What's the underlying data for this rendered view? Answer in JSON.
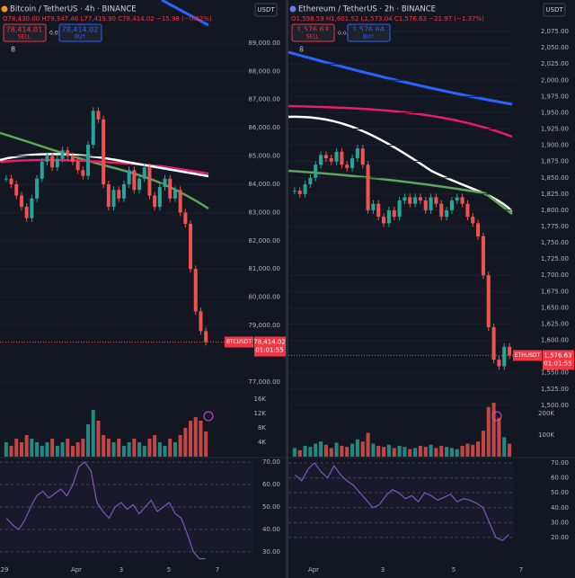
{
  "panels": [
    {
      "header": {
        "title": "Bitcoin / TetherUS · 4h · BINANCE",
        "ohlc": "O78,430.00 H79,347.46 L77,419.90 C78,414.02 −15.98 (−0.02%)",
        "sell_price": "78,414.01",
        "sell": "SELL",
        "spread": "0.01",
        "buy_price": "78,414.02",
        "buy": "BUY",
        "indicators": "8",
        "currency": "USDT"
      },
      "price_ylim": [
        76520,
        89570
      ],
      "price_ticks": [
        {
          "value": 89000,
          "label": "89,000.00"
        },
        {
          "value": 88000,
          "label": "88,000.00"
        },
        {
          "value": 87000,
          "label": "87,000.00"
        },
        {
          "value": 86000,
          "label": "86,000.00"
        },
        {
          "value": 85000,
          "label": "85,000.00"
        },
        {
          "value": 84000,
          "label": "84,000.00"
        },
        {
          "value": 83000,
          "label": "83,000.00"
        },
        {
          "value": 82000,
          "label": "82,000.00"
        },
        {
          "value": 81000,
          "label": "81,000.00"
        },
        {
          "value": 80000,
          "label": "80,000.00"
        },
        {
          "value": 79000,
          "label": "79,000.00"
        },
        {
          "value": 77000,
          "label": "77,000.00"
        }
      ],
      "last_price": {
        "value": 78414.02,
        "label": "78,414.02"
      },
      "symbol": "BTCUSDT",
      "countdown": "01:01:55",
      "closes": [
        84200,
        84000,
        83600,
        83200,
        82800,
        83500,
        84200,
        84800,
        85000,
        84600,
        84900,
        85200,
        85000,
        84800,
        84500,
        84300,
        85400,
        86600,
        86300,
        84000,
        83200,
        83800,
        83500,
        84000,
        84500,
        83800,
        84200,
        84600,
        83600,
        83200,
        83900,
        84200,
        83500,
        83800,
        83000,
        82600,
        81000,
        79500,
        78800,
        78414
      ],
      "volume_ylim": [
        0,
        17
      ],
      "volume_ticks": [
        {
          "value": 16,
          "label": "16K"
        },
        {
          "value": 12,
          "label": "12K"
        },
        {
          "value": 8,
          "label": "8K"
        },
        {
          "value": 4,
          "label": "4K"
        }
      ],
      "volumes": [
        4,
        3,
        5,
        4,
        6,
        5,
        4,
        3,
        4,
        5,
        3,
        4,
        5,
        3,
        4,
        5,
        9,
        13,
        10,
        6,
        5,
        4,
        5,
        3,
        4,
        5,
        4,
        3,
        5,
        6,
        4,
        3,
        5,
        4,
        6,
        8,
        10,
        11,
        10,
        7
      ],
      "rsi_ylim": [
        25.6,
        71.6
      ],
      "rsi_ticks": [
        {
          "value": 70,
          "label": "70.00"
        },
        {
          "value": 60,
          "label": "60.00"
        },
        {
          "value": 50,
          "label": "50.00"
        },
        {
          "value": 40,
          "label": "40.00"
        },
        {
          "value": 30,
          "label": "30.00"
        }
      ],
      "rsi": [
        45,
        42,
        40,
        44,
        50,
        55,
        57,
        54,
        56,
        58,
        55,
        60,
        68,
        70,
        66,
        52,
        48,
        45,
        50,
        52,
        49,
        51,
        47,
        50,
        53,
        48,
        50,
        52,
        47,
        45,
        38,
        30,
        27,
        27
      ],
      "dates": [
        "29",
        "Apr",
        "3",
        "5",
        "7"
      ]
    },
    {
      "header": {
        "title": "Ethereum / TetherUS · 2h · BINANCE",
        "ohlc": "O1,598.59 H1,601.52 L1,573.04 C1,576.63 −21.97 (−1.37%)",
        "sell_price": "1,576.63",
        "sell": "SELL",
        "spread": "0.01",
        "buy_price": "1,576.64",
        "buy": "BUY",
        "indicators": "8",
        "currency": "USDT"
      },
      "price_ylim": [
        1515,
        2082
      ],
      "price_ticks": [
        {
          "value": 2075,
          "label": "2,075.00"
        },
        {
          "value": 2050,
          "label": "2,050.00"
        },
        {
          "value": 2025,
          "label": "2,025.00"
        },
        {
          "value": 2000,
          "label": "2,000.00"
        },
        {
          "value": 1975,
          "label": "1,975.00"
        },
        {
          "value": 1950,
          "label": "1,950.00"
        },
        {
          "value": 1925,
          "label": "1,925.00"
        },
        {
          "value": 1900,
          "label": "1,900.00"
        },
        {
          "value": 1875,
          "label": "1,875.00"
        },
        {
          "value": 1850,
          "label": "1,850.00"
        },
        {
          "value": 1825,
          "label": "1,825.00"
        },
        {
          "value": 1800,
          "label": "1,800.00"
        },
        {
          "value": 1775,
          "label": "1,775.00"
        },
        {
          "value": 1750,
          "label": "1,750.00"
        },
        {
          "value": 1725,
          "label": "1,725.00"
        },
        {
          "value": 1700,
          "label": "1,700.00"
        },
        {
          "value": 1675,
          "label": "1,675.00"
        },
        {
          "value": 1650,
          "label": "1,650.00"
        },
        {
          "value": 1625,
          "label": "1,625.00"
        },
        {
          "value": 1600,
          "label": "1,600.00"
        },
        {
          "value": 1550,
          "label": "1,550.00"
        },
        {
          "value": 1525,
          "label": "1,525.00"
        },
        {
          "value": 1500,
          "label": "1,500.00"
        }
      ],
      "last_price": {
        "value": 1576.63,
        "label": "1,576.63"
      },
      "symbol": "ETHUSDT",
      "countdown": "01:01:55",
      "closes": [
        1830,
        1825,
        1840,
        1850,
        1870,
        1885,
        1880,
        1875,
        1890,
        1870,
        1865,
        1880,
        1895,
        1870,
        1800,
        1810,
        1790,
        1780,
        1800,
        1790,
        1815,
        1820,
        1810,
        1820,
        1815,
        1800,
        1820,
        1810,
        1790,
        1800,
        1815,
        1820,
        1810,
        1790,
        1780,
        1760,
        1700,
        1620,
        1570,
        1560,
        1590,
        1576.63
      ],
      "volume_ylim": [
        0,
        283
      ],
      "volume_ticks": [
        {
          "value": 200,
          "label": "200K"
        },
        {
          "value": 100,
          "label": "100K"
        }
      ],
      "volumes": [
        40,
        30,
        50,
        45,
        60,
        70,
        55,
        40,
        65,
        50,
        45,
        60,
        80,
        70,
        110,
        60,
        50,
        45,
        55,
        40,
        50,
        45,
        35,
        40,
        50,
        45,
        55,
        40,
        50,
        45,
        40,
        35,
        50,
        60,
        55,
        70,
        120,
        230,
        250,
        180,
        90,
        60
      ],
      "rsi_ylim": [
        3.7,
        73
      ],
      "rsi_ticks": [
        {
          "value": 70,
          "label": "70.00"
        },
        {
          "value": 60,
          "label": "60.00"
        },
        {
          "value": 50,
          "label": "50.00"
        },
        {
          "value": 40,
          "label": "40.00"
        },
        {
          "value": 30,
          "label": "30.00"
        },
        {
          "value": 20,
          "label": "20.00"
        }
      ],
      "rsi": [
        62,
        58,
        66,
        70,
        64,
        60,
        68,
        62,
        58,
        55,
        50,
        45,
        40,
        42,
        48,
        52,
        50,
        46,
        48,
        44,
        50,
        48,
        45,
        47,
        49,
        44,
        46,
        45,
        43,
        40,
        30,
        20,
        18,
        22
      ],
      "dates": [
        "Apr",
        "3",
        "5",
        "7"
      ]
    }
  ]
}
